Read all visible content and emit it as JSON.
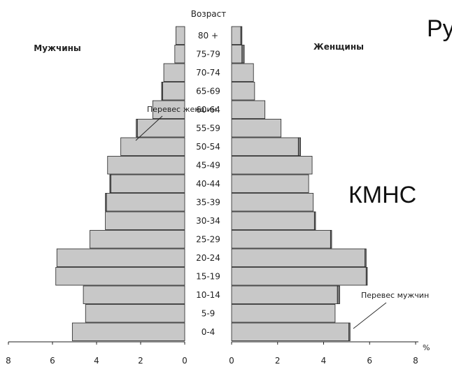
{
  "chart_data": {
    "type": "bar",
    "orientation": "horizontal",
    "layout": "population-pyramid",
    "age_axis_label": "Возраст",
    "x_axis_unit": "%",
    "left_group_label": "Мужчины",
    "right_group_label": "Женщины",
    "annotations": {
      "female_excess": "Перевес женшин",
      "male_excess": "Перевес мужчин"
    },
    "extra_text": {
      "top_right": "Ру",
      "middle_right": "КМНС"
    },
    "left_ticks": [
      "8",
      "6",
      "4",
      "2",
      "0"
    ],
    "right_ticks": [
      "0",
      "2",
      "4",
      "6",
      "8"
    ],
    "xlim": [
      0,
      8
    ],
    "categories": [
      "80 +",
      "75-79",
      "70-74",
      "65-69",
      "60-64",
      "55-59",
      "50-54",
      "45-49",
      "40-44",
      "35-39",
      "30-34",
      "25-29",
      "20-24",
      "15-19",
      "10-14",
      "5-9",
      "0-4"
    ],
    "series": [
      {
        "name": "Мужчины",
        "values": [
          0.4,
          0.45,
          0.95,
          1.05,
          1.45,
          2.2,
          2.9,
          3.5,
          3.4,
          3.6,
          3.6,
          4.3,
          5.8,
          5.85,
          4.6,
          4.5,
          5.1
        ]
      },
      {
        "name": "Женщины",
        "values": [
          0.45,
          0.55,
          0.95,
          1.0,
          1.45,
          2.15,
          3.0,
          3.5,
          3.35,
          3.55,
          3.65,
          4.35,
          5.85,
          5.9,
          4.7,
          4.5,
          5.15
        ]
      }
    ],
    "colors": {
      "bar": "#c8c8c8",
      "excess": "#7a7a7a",
      "edge": "#222222",
      "axis": "#222222"
    }
  }
}
